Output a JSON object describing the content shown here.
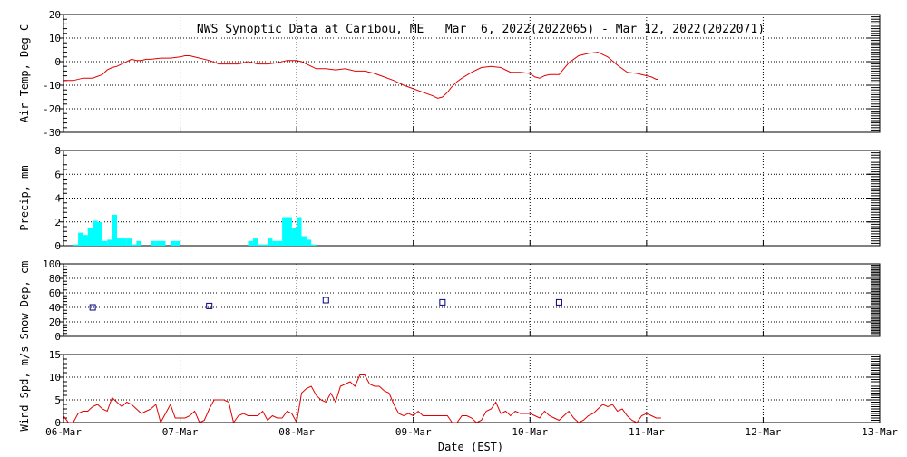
{
  "title": "NWS Synoptic Data at Caribou, ME   Mar  6, 2022(2022065) - Mar 12, 2022(2022071)",
  "x_axis": {
    "label": "Date (EST)",
    "ticks": [
      "06-Mar",
      "07-Mar",
      "08-Mar",
      "09-Mar",
      "10-Mar",
      "11-Mar",
      "12-Mar",
      "13-Mar"
    ]
  },
  "colors": {
    "temp_line": "#e00000",
    "precip_bars": "#00ffff",
    "snow_markers": "#000080",
    "wind_line": "#e00000",
    "grid": "#000000"
  },
  "chart_data": [
    {
      "type": "line",
      "panel": "air-temp",
      "ylabel": "Air Temp, Deg C",
      "ylim": [
        -30,
        20
      ],
      "yticks": [
        -30,
        -20,
        -10,
        0,
        10,
        20
      ],
      "xlim_days": [
        0,
        7
      ],
      "grid": true,
      "series": [
        {
          "x": [
            0,
            0.083,
            0.167,
            0.25,
            0.333,
            0.375,
            0.417,
            0.458,
            0.5,
            0.542,
            0.583,
            0.625,
            0.667,
            0.708,
            0.75,
            0.833,
            0.917,
            1.0,
            1.042,
            1.083,
            1.167,
            1.25,
            1.333,
            1.417,
            1.5,
            1.583,
            1.667,
            1.75,
            1.833,
            1.917,
            2.0,
            2.042,
            2.083,
            2.125,
            2.167,
            2.25,
            2.333,
            2.417,
            2.5,
            2.583,
            2.667,
            2.75,
            2.833,
            2.917,
            3.0,
            3.083,
            3.167,
            3.208,
            3.25,
            3.292,
            3.333,
            3.375,
            3.417,
            3.5,
            3.583,
            3.667,
            3.75,
            3.833,
            3.917,
            4.0,
            4.042,
            4.083,
            4.125,
            4.167,
            4.208,
            4.25,
            4.333,
            4.417,
            4.5,
            4.583,
            4.667,
            4.75,
            4.833,
            4.917,
            5.0,
            5.042,
            5.083,
            5.1
          ],
          "y": [
            -8,
            -8,
            -7,
            -7,
            -5.5,
            -3.5,
            -2.5,
            -2,
            -1,
            0,
            1,
            0.5,
            0.5,
            1,
            1,
            1.5,
            1.5,
            2,
            2.5,
            2.5,
            1.5,
            0.5,
            -1,
            -1,
            -1,
            0,
            -1,
            -1,
            -0.5,
            0.5,
            0.5,
            0,
            -1,
            -2,
            -3,
            -3,
            -3.5,
            -3,
            -4,
            -4,
            -5,
            -6.5,
            -8,
            -10,
            -11.5,
            -13,
            -14.5,
            -15.5,
            -15,
            -13,
            -10.5,
            -8.5,
            -7,
            -4.5,
            -2.5,
            -2,
            -2.5,
            -4.5,
            -4.5,
            -5,
            -6.5,
            -7,
            -6,
            -5.5,
            -5.5,
            -5.5,
            -0.5,
            2.5,
            3.5,
            4,
            2,
            -1.5,
            -4.5,
            -5,
            -6,
            -6.5,
            -7.5,
            -7.5
          ]
        }
      ]
    },
    {
      "type": "bar",
      "panel": "precip",
      "ylabel": "Precip, mm",
      "ylim": [
        0,
        8
      ],
      "yticks": [
        0,
        2,
        4,
        6,
        8
      ],
      "xlim_days": [
        0,
        7
      ],
      "grid": true,
      "bar_width_days": 0.042,
      "x": [
        0.083,
        0.125,
        0.167,
        0.208,
        0.25,
        0.292,
        0.333,
        0.375,
        0.417,
        0.458,
        0.5,
        0.542,
        0.583,
        0.625,
        0.75,
        0.792,
        0.833,
        0.917,
        0.958,
        1.583,
        1.625,
        1.667,
        1.708,
        1.75,
        1.792,
        1.833,
        1.875,
        1.917,
        1.958,
        2.0,
        2.042,
        2.083,
        2.125
      ],
      "values": [
        0.1,
        1.1,
        0.9,
        1.5,
        2.1,
        2.0,
        0.4,
        0.5,
        2.6,
        0.6,
        0.6,
        0.6,
        0.1,
        0.4,
        0.4,
        0.4,
        0.4,
        0.4,
        0.4,
        0.4,
        0.6,
        0.1,
        0.1,
        0.6,
        0.4,
        0.4,
        2.4,
        2.4,
        1.5,
        2.4,
        0.8,
        0.5,
        0.1
      ]
    },
    {
      "type": "scatter",
      "panel": "snow-depth",
      "ylabel": "Snow Dep, cm",
      "ylim": [
        0,
        100
      ],
      "yticks": [
        0,
        20,
        40,
        60,
        80,
        100
      ],
      "xlim_days": [
        0,
        7
      ],
      "grid": true,
      "x": [
        0.25,
        1.25,
        2.25,
        3.25,
        4.25
      ],
      "values": [
        40,
        42,
        50,
        47,
        47
      ]
    },
    {
      "type": "line",
      "panel": "wind-speed",
      "ylabel": "Wind Spd, m/s",
      "ylim": [
        0,
        15
      ],
      "yticks": [
        0,
        5,
        10,
        15
      ],
      "xlim_days": [
        0,
        7
      ],
      "grid": true,
      "series": [
        {
          "x": [
            0,
            0.042,
            0.083,
            0.125,
            0.167,
            0.208,
            0.25,
            0.292,
            0.333,
            0.375,
            0.417,
            0.458,
            0.5,
            0.542,
            0.583,
            0.625,
            0.667,
            0.708,
            0.75,
            0.792,
            0.833,
            0.875,
            0.917,
            0.958,
            1.0,
            1.042,
            1.083,
            1.125,
            1.167,
            1.208,
            1.25,
            1.292,
            1.333,
            1.375,
            1.417,
            1.458,
            1.5,
            1.542,
            1.583,
            1.625,
            1.667,
            1.708,
            1.75,
            1.792,
            1.833,
            1.875,
            1.917,
            1.958,
            2.0,
            2.042,
            2.083,
            2.125,
            2.167,
            2.208,
            2.25,
            2.292,
            2.333,
            2.375,
            2.417,
            2.458,
            2.5,
            2.542,
            2.583,
            2.625,
            2.667,
            2.708,
            2.75,
            2.792,
            2.833,
            2.875,
            2.917,
            2.958,
            3.0,
            3.042,
            3.083,
            3.125,
            3.167,
            3.208,
            3.25,
            3.292,
            3.333,
            3.375,
            3.417,
            3.458,
            3.5,
            3.542,
            3.583,
            3.625,
            3.667,
            3.708,
            3.75,
            3.792,
            3.833,
            3.875,
            3.917,
            3.958,
            4.0,
            4.042,
            4.083,
            4.125,
            4.167,
            4.208,
            4.25,
            4.292,
            4.333,
            4.375,
            4.417,
            4.458,
            4.5,
            4.542,
            4.583,
            4.625,
            4.667,
            4.708,
            4.75,
            4.792,
            4.833,
            4.875,
            4.917,
            4.958,
            5.0,
            5.042,
            5.083,
            5.125
          ],
          "y": [
            1.5,
            0,
            0,
            2,
            2.5,
            2.5,
            3.5,
            4,
            3,
            2.5,
            5.5,
            4.5,
            3.5,
            4.5,
            4,
            3,
            2,
            2.5,
            3,
            4,
            0,
            2,
            4,
            1,
            1,
            1,
            1.5,
            2.5,
            0,
            0.5,
            3,
            5,
            5,
            5,
            4.5,
            0,
            1.5,
            2,
            1.5,
            1.5,
            1.5,
            2.5,
            0.5,
            1.5,
            1,
            1,
            2.5,
            2,
            0,
            6.5,
            7.5,
            8,
            6,
            5,
            4.5,
            6.5,
            4.5,
            8,
            8.5,
            9,
            8,
            10.5,
            10.5,
            8.5,
            8,
            8,
            7,
            6.5,
            4,
            2,
            1.5,
            2,
            1.5,
            2.5,
            1.5,
            1.5,
            1.5,
            1.5,
            1.5,
            1.5,
            0,
            0,
            1.5,
            1.5,
            1,
            0,
            0.5,
            2.5,
            3,
            4.5,
            2,
            2.5,
            1.5,
            2.5,
            2,
            2,
            2,
            1.5,
            1,
            2.5,
            1.5,
            1,
            0.5,
            1.5,
            2.5,
            1,
            0,
            0.5,
            1.5,
            2,
            3,
            4,
            3.5,
            4,
            2.5,
            3,
            1.5,
            0.5,
            0,
            1.5,
            2,
            1.5,
            1,
            1
          ]
        }
      ]
    }
  ]
}
